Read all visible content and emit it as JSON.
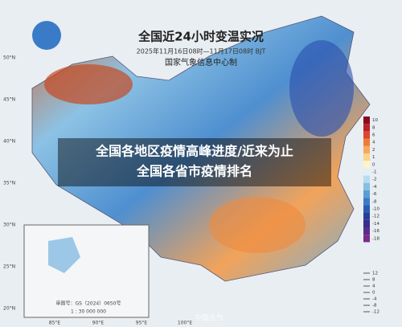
{
  "header": {
    "title": "全国近24小时变温实况",
    "subtitle": "2025年11月16日08时—11月17日08时 BJT",
    "org": "国家气象信息中心制"
  },
  "overlay": {
    "line1": "全国各地区疫情高峰进度/近来为止",
    "line2": "全国各省市疫情排名"
  },
  "legend": {
    "items": [
      {
        "label": "10",
        "color": "#8b0a1e"
      },
      {
        "label": "8",
        "color": "#b8202a"
      },
      {
        "label": "6",
        "color": "#d9472e"
      },
      {
        "label": "4",
        "color": "#ee7a3a"
      },
      {
        "label": "2",
        "color": "#f6a95b"
      },
      {
        "label": "1",
        "color": "#fbd38c"
      },
      {
        "label": "0",
        "color": "#fff4c8"
      },
      {
        "label": "-1",
        "color": "#dff0f6"
      },
      {
        "label": "-2",
        "color": "#b6dcee"
      },
      {
        "label": "-4",
        "color": "#86bfe2"
      },
      {
        "label": "-6",
        "color": "#5a9ed4"
      },
      {
        "label": "-8",
        "color": "#3b7cc4"
      },
      {
        "label": "-10",
        "color": "#2a5bb0"
      },
      {
        "label": "-12",
        "color": "#24409a"
      },
      {
        "label": "-14",
        "color": "#3a2c8a"
      },
      {
        "label": "-16",
        "color": "#5a2a8c"
      },
      {
        "label": "-18",
        "color": "#7a2a8a"
      }
    ]
  },
  "legend2": {
    "items": [
      "12",
      "8",
      "4",
      "0",
      "-4",
      "-8",
      "-12"
    ]
  },
  "axes": {
    "lat": [
      "50°N",
      "45°N",
      "40°N",
      "35°N",
      "30°N",
      "25°N",
      "20°N"
    ],
    "lon": [
      "85°E",
      "90°E",
      "95°E",
      "100°E"
    ]
  },
  "inset": {
    "note": "审图号：GS（2024）0650号",
    "scale": "1 : 30 000 000"
  },
  "watermark": "中国天气"
}
